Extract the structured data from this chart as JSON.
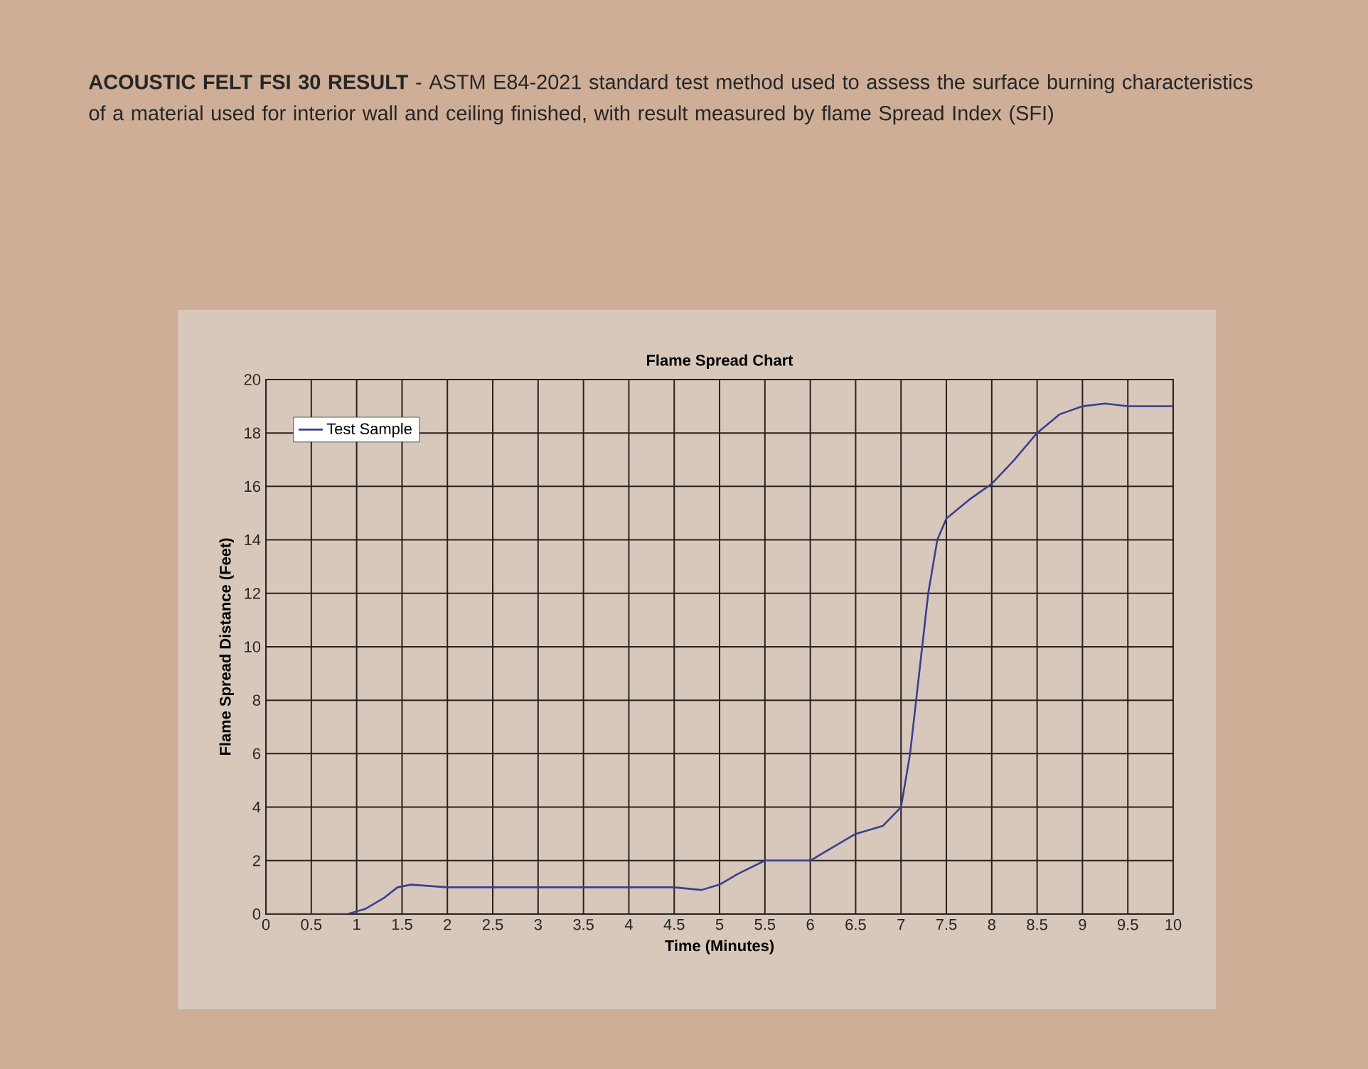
{
  "chart_data": {
    "type": "line",
    "title": "Flame Spread Chart",
    "subtitle": "**ACOUSTIC FELT FSI 30 RESULT** - ASTM E84-2021 standard test method used to assess the surface burning characteristics of a material used for interior wall and ceiling finished, with result measured by flame Spread Index (SFI)",
    "xlabel": "Time (Minutes)",
    "ylabel": "Flame Spread Distance (Feet)",
    "xlim": [
      0,
      10
    ],
    "ylim": [
      0,
      20
    ],
    "xticks": [
      0,
      0.5,
      1,
      1.5,
      2,
      2.5,
      3,
      3.5,
      4,
      4.5,
      5,
      5.5,
      6,
      6.5,
      7,
      7.5,
      8,
      8.5,
      9,
      9.5,
      10
    ],
    "yticks": [
      0,
      2,
      4,
      6,
      8,
      10,
      12,
      14,
      16,
      18,
      20
    ],
    "grid": true,
    "legend": "top left",
    "marker": "none",
    "line_style": "solid",
    "x": [
      0,
      0.5,
      0.9,
      1.1,
      1.3,
      1.45,
      1.6,
      2,
      3,
      4,
      4.5,
      4.8,
      5,
      5.2,
      5.5,
      5.7,
      6,
      6.2,
      6.5,
      6.8,
      7,
      7.1,
      7.2,
      7.3,
      7.4,
      7.5,
      7.75,
      8,
      8.25,
      8.5,
      8.75,
      9,
      9.25,
      9.5,
      10
    ],
    "series": [
      {
        "name": "Test Sample",
        "color": "#3a3f8f",
        "values": [
          0,
          0,
          0,
          0.2,
          0.6,
          1.0,
          1.1,
          1.0,
          1.0,
          1.0,
          1.0,
          0.9,
          1.1,
          1.5,
          2.0,
          2.0,
          2.0,
          2.4,
          3.0,
          3.3,
          4,
          6,
          9,
          12,
          14,
          14.8,
          15.5,
          16.1,
          17,
          18,
          18.7,
          19.0,
          19.1,
          19.0,
          19.0
        ]
      }
    ]
  }
}
